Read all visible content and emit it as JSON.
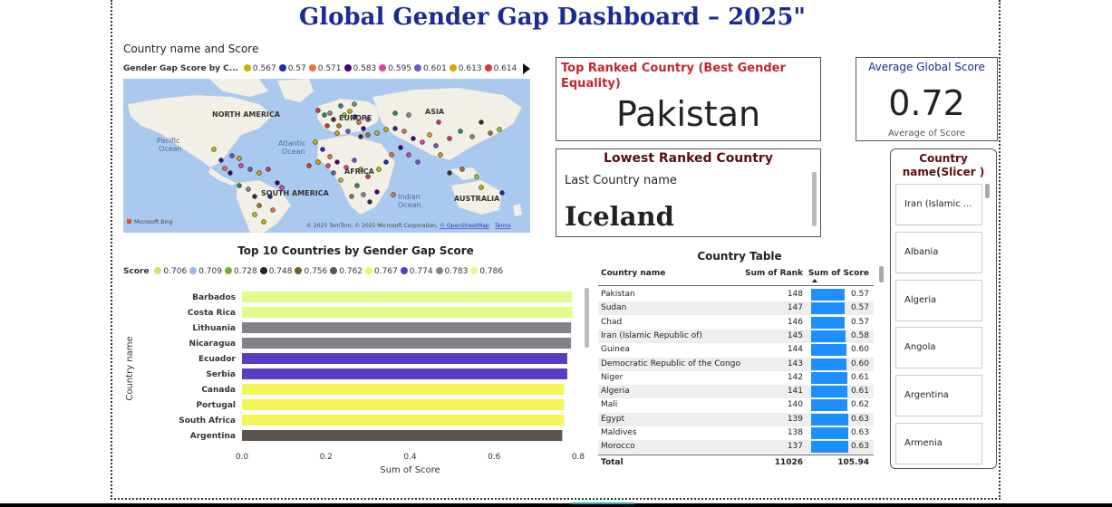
{
  "dashboard": {
    "title": "Global Gender Gap Dashboard – 2025\""
  },
  "map": {
    "title": "Country name and Score",
    "legend_label": "Gender Gap Score by C...",
    "legend": [
      {
        "label": "0.567",
        "color": "#c8b400"
      },
      {
        "label": "0.57",
        "color": "#1c2bb0"
      },
      {
        "label": "0.571",
        "color": "#e8743b"
      },
      {
        "label": "0.583",
        "color": "#4b0082"
      },
      {
        "label": "0.595",
        "color": "#e040a0"
      },
      {
        "label": "0.601",
        "color": "#6a5acd"
      },
      {
        "label": "0.613",
        "color": "#d4a500"
      },
      {
        "label": "0.614",
        "color": "#d9363e"
      }
    ],
    "labels": {
      "north_america": "NORTH AMERICA",
      "europe": "EUROPE",
      "asia": "ASIA",
      "pacific": "Pacific",
      "pacific2": "Ocean",
      "atlantic": "Atlantic",
      "atlantic2": "Ocean",
      "africa": "AFRICA",
      "south_america": "SOUTH AMERICA",
      "indian": "Indian",
      "indian2": "Ocean",
      "australia": "AUSTRALIA"
    },
    "bing": "Microsoft Bing",
    "copyright": "© 2025 TomTom, © 2025 Microsoft Corporation,",
    "osm": "© OpenStreetMap",
    "terms": "Terms"
  },
  "top_card": {
    "heading": "Top Ranked Country (Best Gender Equality)",
    "value": "Pakistan"
  },
  "avg_card": {
    "heading": "Average Global Score",
    "value": "0.72",
    "subtitle": "Average of Score"
  },
  "low_card": {
    "heading": "Lowest Ranked Country",
    "subtitle": "Last Country name",
    "value": "Iceland"
  },
  "slicer": {
    "heading": "Country name(Slicer )",
    "items": [
      "Iran (Islamic ...",
      "Albania",
      "Algeria",
      "Angola",
      "Argentina",
      "Armenia"
    ]
  },
  "chart_data": {
    "type": "bar",
    "title": "Top 10 Countries by Gender Gap Score",
    "legend_title": "Score",
    "xlabel": "Sum of Score",
    "ylabel": "Country name",
    "xlim": [
      0,
      0.8
    ],
    "xticks": [
      "0.0",
      "0.2",
      "0.4",
      "0.6",
      "0.8"
    ],
    "legend": [
      {
        "label": "0.706",
        "color": "#c9e86a"
      },
      {
        "label": "0.709",
        "color": "#9db5f0"
      },
      {
        "label": "0.728",
        "color": "#7dab2e"
      },
      {
        "label": "0.748",
        "color": "#222222"
      },
      {
        "label": "0.756",
        "color": "#6f6232"
      },
      {
        "label": "0.762",
        "color": "#5a5550"
      },
      {
        "label": "0.767",
        "color": "#f5f55a"
      },
      {
        "label": "0.774",
        "color": "#5a3cc0"
      },
      {
        "label": "0.783",
        "color": "#84818a"
      },
      {
        "label": "0.786",
        "color": "#e2fb8a"
      }
    ],
    "categories": [
      "Barbados",
      "Costa Rica",
      "Lithuania",
      "Nicaragua",
      "Ecuador",
      "Serbia",
      "Canada",
      "Portugal",
      "South Africa",
      "Argentina"
    ],
    "values": [
      0.786,
      0.786,
      0.783,
      0.783,
      0.774,
      0.774,
      0.767,
      0.767,
      0.767,
      0.762
    ],
    "colors": [
      "#e2fb8a",
      "#e2fb8a",
      "#84818a",
      "#84818a",
      "#5a3cc0",
      "#5a3cc0",
      "#f5f55a",
      "#f5f55a",
      "#f5f55a",
      "#5a5550"
    ]
  },
  "table": {
    "title": "Country Table",
    "headers": [
      "Country name",
      "Sum of Rank",
      "Sum of Score"
    ],
    "rows": [
      [
        "Pakistan",
        "148",
        "0.57",
        0.57
      ],
      [
        "Sudan",
        "147",
        "0.57",
        0.57
      ],
      [
        "Chad",
        "146",
        "0.57",
        0.57
      ],
      [
        "Iran (Islamic Republic of)",
        "145",
        "0.58",
        0.58
      ],
      [
        "Guinea",
        "144",
        "0.60",
        0.6
      ],
      [
        "Democratic Republic of the Congo",
        "143",
        "0.60",
        0.6
      ],
      [
        "Niger",
        "142",
        "0.61",
        0.61
      ],
      [
        "Algeria",
        "141",
        "0.61",
        0.61
      ],
      [
        "Mali",
        "140",
        "0.62",
        0.62
      ],
      [
        "Egypt",
        "139",
        "0.63",
        0.63
      ],
      [
        "Maldives",
        "138",
        "0.63",
        0.63
      ],
      [
        "Morocco",
        "137",
        "0.63",
        0.63
      ]
    ],
    "total": [
      "Total",
      "11026",
      "105.94"
    ]
  }
}
